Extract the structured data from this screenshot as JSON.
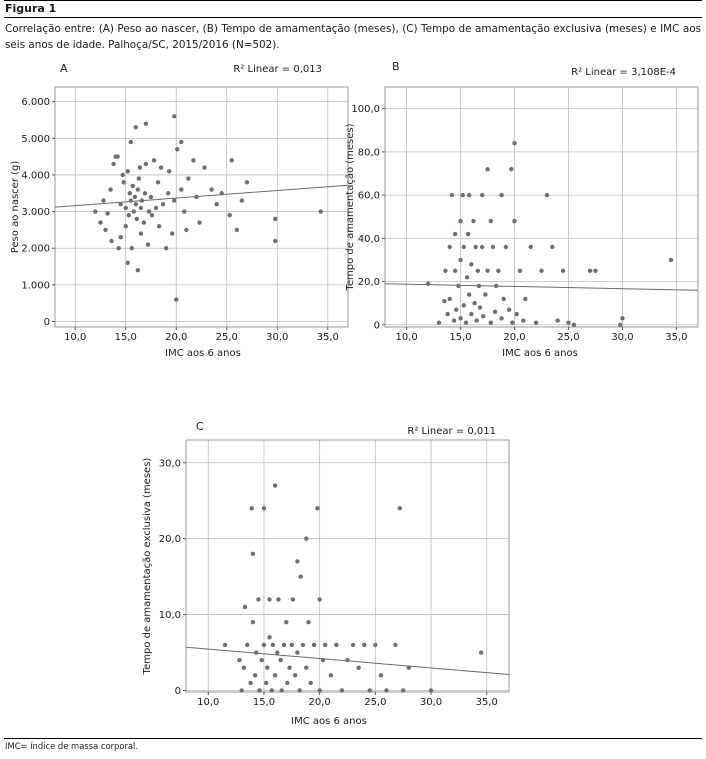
{
  "figure": {
    "label": "Figura 1",
    "caption": "Correlação entre: (A) Peso ao nascer, (B) Tempo de amamentação (meses), (C) Tempo de amamentação exclusiva (meses) e IMC aos seis anos de idade. Palhoça/SC, 2015/2016 (N=502).",
    "footnote": "IMC= índice de massa corporal."
  },
  "colors": {
    "points": "#6f6f6f",
    "grid": "#bdbdbd",
    "fit_line": "#6a6a6a",
    "frame": "#9a9a9a"
  },
  "chart_data": [
    {
      "panel": "A",
      "type": "scatter",
      "r2_label": "R² Linear = 0,013",
      "xlabel": "IMC aos 6 anos",
      "ylabel": "Peso ao nascer (g)",
      "xlim": [
        8.0,
        37.0
      ],
      "ylim": [
        -150,
        6400
      ],
      "xticks": [
        10,
        15,
        20,
        25,
        30,
        35
      ],
      "xtick_labels": [
        "10,0",
        "15,0",
        "20,0",
        "25,0",
        "30,0",
        "35,0"
      ],
      "yticks": [
        0,
        1000,
        2000,
        3000,
        4000,
        5000,
        6000
      ],
      "ytick_labels": [
        "0",
        "1.000",
        "2.000",
        "3.000",
        "4.000",
        "5.000",
        "6.000"
      ],
      "grid": true,
      "fit_line": [
        [
          8.0,
          3120
        ],
        [
          37.0,
          3720
        ]
      ],
      "points": [
        [
          12.0,
          3000
        ],
        [
          12.5,
          2700
        ],
        [
          12.8,
          3300
        ],
        [
          13.0,
          2500
        ],
        [
          13.2,
          2950
        ],
        [
          13.5,
          3600
        ],
        [
          13.6,
          2200
        ],
        [
          13.8,
          4300
        ],
        [
          14.0,
          4500
        ],
        [
          14.2,
          4500
        ],
        [
          14.3,
          2000
        ],
        [
          14.5,
          2300
        ],
        [
          14.5,
          3200
        ],
        [
          14.7,
          4000
        ],
        [
          14.8,
          3800
        ],
        [
          15.0,
          2600
        ],
        [
          15.0,
          3100
        ],
        [
          15.2,
          4100
        ],
        [
          15.2,
          1600
        ],
        [
          15.3,
          2900
        ],
        [
          15.4,
          3500
        ],
        [
          15.5,
          3300
        ],
        [
          15.5,
          4900
        ],
        [
          15.6,
          2000
        ],
        [
          15.7,
          3700
        ],
        [
          15.8,
          3000
        ],
        [
          15.9,
          3400
        ],
        [
          16.0,
          5300
        ],
        [
          16.0,
          3200
        ],
        [
          16.1,
          2800
        ],
        [
          16.2,
          1400
        ],
        [
          16.2,
          3600
        ],
        [
          16.3,
          3900
        ],
        [
          16.4,
          4200
        ],
        [
          16.5,
          2400
        ],
        [
          16.5,
          3100
        ],
        [
          16.6,
          3300
        ],
        [
          16.8,
          2700
        ],
        [
          16.9,
          3500
        ],
        [
          17.0,
          5400
        ],
        [
          17.0,
          4300
        ],
        [
          17.2,
          2100
        ],
        [
          17.3,
          3000
        ],
        [
          17.5,
          3400
        ],
        [
          17.6,
          2900
        ],
        [
          17.8,
          4400
        ],
        [
          18.0,
          3100
        ],
        [
          18.2,
          3800
        ],
        [
          18.3,
          2600
        ],
        [
          18.5,
          4200
        ],
        [
          18.7,
          3200
        ],
        [
          19.0,
          2000
        ],
        [
          19.2,
          3500
        ],
        [
          19.3,
          4100
        ],
        [
          19.6,
          2400
        ],
        [
          19.8,
          3300
        ],
        [
          19.8,
          5600
        ],
        [
          20.0,
          600
        ],
        [
          20.1,
          4700
        ],
        [
          20.5,
          3600
        ],
        [
          20.5,
          4900
        ],
        [
          20.8,
          3000
        ],
        [
          21.0,
          2500
        ],
        [
          21.2,
          3900
        ],
        [
          21.7,
          4400
        ],
        [
          22.0,
          3400
        ],
        [
          22.3,
          2700
        ],
        [
          22.8,
          4200
        ],
        [
          23.5,
          3600
        ],
        [
          24.0,
          3200
        ],
        [
          24.5,
          3500
        ],
        [
          25.3,
          2900
        ],
        [
          25.5,
          4400
        ],
        [
          26.0,
          2500
        ],
        [
          26.5,
          3300
        ],
        [
          27.0,
          3800
        ],
        [
          29.8,
          2200
        ],
        [
          29.8,
          2800
        ],
        [
          34.3,
          3000
        ]
      ]
    },
    {
      "panel": "B",
      "type": "scatter",
      "r2_label": "R² Linear = 3,108E-4",
      "xlabel": "IMC aos 6 anos",
      "ylabel": "Tempo de amamentação (meses)",
      "xlim": [
        8.0,
        37.0
      ],
      "ylim": [
        -1,
        110
      ],
      "xticks": [
        10,
        15,
        20,
        25,
        30,
        35
      ],
      "xtick_labels": [
        "10,0",
        "15,0",
        "20,0",
        "25,0",
        "30,0",
        "35,0"
      ],
      "yticks": [
        0,
        20,
        40,
        60,
        80,
        100
      ],
      "ytick_labels": [
        "0",
        "20,0",
        "40,0",
        "60,0",
        "80,0",
        "100,0"
      ],
      "grid": true,
      "fit_line": [
        [
          8.0,
          19.0
        ],
        [
          37.0,
          16.0
        ]
      ],
      "points": [
        [
          12.0,
          19
        ],
        [
          13.0,
          1
        ],
        [
          13.5,
          11
        ],
        [
          13.6,
          25
        ],
        [
          13.8,
          5
        ],
        [
          14.0,
          36
        ],
        [
          14.0,
          12
        ],
        [
          14.2,
          60
        ],
        [
          14.4,
          2
        ],
        [
          14.5,
          42
        ],
        [
          14.5,
          25
        ],
        [
          14.6,
          7
        ],
        [
          14.8,
          18
        ],
        [
          15.0,
          48
        ],
        [
          15.0,
          3
        ],
        [
          15.0,
          30
        ],
        [
          15.2,
          60
        ],
        [
          15.3,
          9
        ],
        [
          15.3,
          36
        ],
        [
          15.5,
          1
        ],
        [
          15.6,
          22
        ],
        [
          15.7,
          42
        ],
        [
          15.8,
          14
        ],
        [
          15.8,
          60
        ],
        [
          16.0,
          5
        ],
        [
          16.0,
          28
        ],
        [
          16.2,
          48
        ],
        [
          16.3,
          10
        ],
        [
          16.4,
          36
        ],
        [
          16.5,
          2
        ],
        [
          16.6,
          25
        ],
        [
          16.7,
          18
        ],
        [
          16.8,
          8
        ],
        [
          17.0,
          36
        ],
        [
          17.0,
          60
        ],
        [
          17.1,
          4
        ],
        [
          17.3,
          14
        ],
        [
          17.5,
          25
        ],
        [
          17.5,
          72
        ],
        [
          17.8,
          1
        ],
        [
          17.8,
          48
        ],
        [
          18.0,
          36
        ],
        [
          18.2,
          6
        ],
        [
          18.3,
          18
        ],
        [
          18.5,
          25
        ],
        [
          18.8,
          60
        ],
        [
          18.8,
          3
        ],
        [
          19.0,
          12
        ],
        [
          19.2,
          36
        ],
        [
          19.5,
          7
        ],
        [
          19.7,
          72
        ],
        [
          19.8,
          1
        ],
        [
          20.0,
          84
        ],
        [
          20.0,
          48
        ],
        [
          20.2,
          5
        ],
        [
          20.5,
          25
        ],
        [
          20.8,
          2
        ],
        [
          21.0,
          12
        ],
        [
          21.5,
          36
        ],
        [
          22.0,
          1
        ],
        [
          22.5,
          25
        ],
        [
          23.0,
          60
        ],
        [
          23.5,
          36
        ],
        [
          24.0,
          2
        ],
        [
          24.5,
          25
        ],
        [
          25.0,
          1
        ],
        [
          25.5,
          0
        ],
        [
          27.0,
          25
        ],
        [
          27.5,
          25
        ],
        [
          29.8,
          0
        ],
        [
          30.0,
          3
        ],
        [
          34.5,
          30
        ]
      ]
    },
    {
      "panel": "C",
      "type": "scatter",
      "r2_label": "R² Linear = 0,011",
      "xlabel": "IMC aos 6 anos",
      "ylabel": "Tempo de amamentação exclusiva (meses)",
      "xlim": [
        8.0,
        37.0
      ],
      "ylim": [
        -0.2,
        33
      ],
      "xticks": [
        10,
        15,
        20,
        25,
        30,
        35
      ],
      "xtick_labels": [
        "10,0",
        "15,0",
        "20,0",
        "25,0",
        "30,0",
        "35,0"
      ],
      "yticks": [
        0,
        10,
        20,
        30
      ],
      "ytick_labels": [
        "0",
        "10,0",
        "20,0",
        "30,0"
      ],
      "grid": true,
      "fit_line": [
        [
          8.0,
          5.7
        ],
        [
          37.0,
          2.1
        ]
      ],
      "points": [
        [
          11.5,
          6
        ],
        [
          12.8,
          4
        ],
        [
          13.0,
          0
        ],
        [
          13.2,
          3
        ],
        [
          13.3,
          11
        ],
        [
          13.5,
          6
        ],
        [
          13.8,
          1
        ],
        [
          13.9,
          24
        ],
        [
          14.0,
          18
        ],
        [
          14.0,
          9
        ],
        [
          14.2,
          2
        ],
        [
          14.3,
          5
        ],
        [
          14.5,
          12
        ],
        [
          14.6,
          0
        ],
        [
          14.8,
          4
        ],
        [
          15.0,
          6
        ],
        [
          15.0,
          24
        ],
        [
          15.2,
          1
        ],
        [
          15.3,
          3
        ],
        [
          15.5,
          7
        ],
        [
          15.5,
          12
        ],
        [
          15.7,
          0
        ],
        [
          15.8,
          6
        ],
        [
          16.0,
          27
        ],
        [
          16.0,
          2
        ],
        [
          16.2,
          5
        ],
        [
          16.3,
          12
        ],
        [
          16.5,
          4
        ],
        [
          16.6,
          0
        ],
        [
          16.8,
          6
        ],
        [
          17.0,
          9
        ],
        [
          17.1,
          1
        ],
        [
          17.3,
          3
        ],
        [
          17.5,
          6
        ],
        [
          17.6,
          12
        ],
        [
          17.8,
          2
        ],
        [
          18.0,
          17
        ],
        [
          18.0,
          5
        ],
        [
          18.2,
          0
        ],
        [
          18.3,
          15
        ],
        [
          18.5,
          6
        ],
        [
          18.8,
          20
        ],
        [
          18.8,
          3
        ],
        [
          19.0,
          9
        ],
        [
          19.2,
          1
        ],
        [
          19.5,
          6
        ],
        [
          19.8,
          24
        ],
        [
          20.0,
          12
        ],
        [
          20.0,
          0
        ],
        [
          20.3,
          4
        ],
        [
          20.5,
          6
        ],
        [
          21.0,
          2
        ],
        [
          21.5,
          6
        ],
        [
          22.0,
          0
        ],
        [
          22.5,
          4
        ],
        [
          23.0,
          6
        ],
        [
          23.5,
          3
        ],
        [
          24.0,
          6
        ],
        [
          24.5,
          0
        ],
        [
          25.0,
          6
        ],
        [
          25.5,
          2
        ],
        [
          26.0,
          0
        ],
        [
          26.8,
          6
        ],
        [
          27.2,
          24
        ],
        [
          27.5,
          0
        ],
        [
          28.0,
          3
        ],
        [
          30.0,
          0
        ],
        [
          34.5,
          5
        ]
      ]
    }
  ]
}
